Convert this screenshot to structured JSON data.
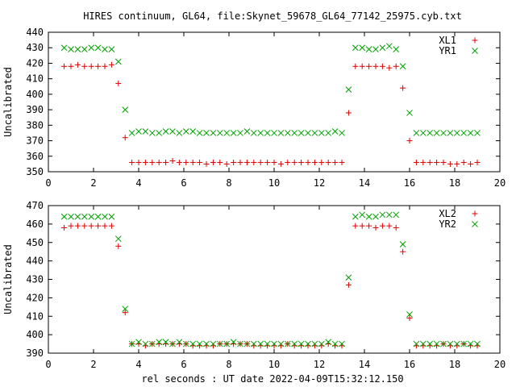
{
  "title": "HIRES continuum, GL64, file:Skynet_59678_GL64_77142_25975.cyb.txt",
  "xlabel": "rel seconds : UT date 2022-04-09T15:32:12.150",
  "colors": {
    "series1": "#e00000",
    "series2": "#00a000"
  },
  "chart_data": [
    {
      "type": "scatter",
      "ylabel": "Uncalibrated",
      "xlim": [
        0,
        20
      ],
      "ylim": [
        350,
        440
      ],
      "xticks": [
        0,
        2,
        4,
        6,
        8,
        10,
        12,
        14,
        16,
        18,
        20
      ],
      "yticks": [
        350,
        360,
        370,
        380,
        390,
        400,
        410,
        420,
        430,
        440
      ],
      "legend": "top-right",
      "series": [
        {
          "name": "XL1",
          "marker": "plus",
          "x": [
            0.7,
            1.0,
            1.3,
            1.6,
            1.9,
            2.2,
            2.5,
            2.8,
            3.1,
            3.4,
            3.7,
            4.0,
            4.3,
            4.6,
            4.9,
            5.2,
            5.5,
            5.8,
            6.1,
            6.4,
            6.7,
            7.0,
            7.3,
            7.6,
            7.9,
            8.2,
            8.5,
            8.8,
            9.1,
            9.4,
            9.7,
            10.0,
            10.3,
            10.6,
            10.9,
            11.2,
            11.5,
            11.8,
            12.1,
            12.4,
            12.7,
            13.0,
            13.3,
            13.6,
            13.9,
            14.2,
            14.5,
            14.8,
            15.1,
            15.4,
            15.7,
            16.0,
            16.3,
            16.6,
            16.9,
            17.2,
            17.5,
            17.8,
            18.1,
            18.4,
            18.7,
            19.0
          ],
          "y": [
            418,
            418,
            419,
            418,
            418,
            418,
            418,
            419,
            407,
            372,
            356,
            356,
            356,
            356,
            356,
            356,
            357,
            356,
            356,
            356,
            356,
            355,
            356,
            356,
            355,
            356,
            356,
            356,
            356,
            356,
            356,
            356,
            355,
            356,
            356,
            356,
            356,
            356,
            356,
            356,
            356,
            356,
            388,
            418,
            418,
            418,
            418,
            418,
            417,
            418,
            404,
            370,
            356,
            356,
            356,
            356,
            356,
            355,
            355,
            356,
            355,
            356
          ]
        },
        {
          "name": "YR1",
          "marker": "cross",
          "x": [
            0.7,
            1.0,
            1.3,
            1.6,
            1.9,
            2.2,
            2.5,
            2.8,
            3.1,
            3.4,
            3.7,
            4.0,
            4.3,
            4.6,
            4.9,
            5.2,
            5.5,
            5.8,
            6.1,
            6.4,
            6.7,
            7.0,
            7.3,
            7.6,
            7.9,
            8.2,
            8.5,
            8.8,
            9.1,
            9.4,
            9.7,
            10.0,
            10.3,
            10.6,
            10.9,
            11.2,
            11.5,
            11.8,
            12.1,
            12.4,
            12.7,
            13.0,
            13.3,
            13.6,
            13.9,
            14.2,
            14.5,
            14.8,
            15.1,
            15.4,
            15.7,
            16.0,
            16.3,
            16.6,
            16.9,
            17.2,
            17.5,
            17.8,
            18.1,
            18.4,
            18.7,
            19.0
          ],
          "y": [
            430,
            429,
            429,
            429,
            430,
            430,
            429,
            429,
            421,
            390,
            375,
            376,
            376,
            375,
            375,
            376,
            376,
            375,
            376,
            376,
            375,
            375,
            375,
            375,
            375,
            375,
            375,
            376,
            375,
            375,
            375,
            375,
            375,
            375,
            375,
            375,
            375,
            375,
            375,
            375,
            376,
            375,
            403,
            430,
            430,
            429,
            429,
            430,
            431,
            429,
            418,
            388,
            375,
            375,
            375,
            375,
            375,
            375,
            375,
            375,
            375,
            375
          ]
        }
      ]
    },
    {
      "type": "scatter",
      "ylabel": "Uncalibrated",
      "xlim": [
        0,
        20
      ],
      "ylim": [
        390,
        470
      ],
      "xticks": [
        0,
        2,
        4,
        6,
        8,
        10,
        12,
        14,
        16,
        18,
        20
      ],
      "yticks": [
        390,
        400,
        410,
        420,
        430,
        440,
        450,
        460,
        470
      ],
      "legend": "top-right",
      "series": [
        {
          "name": "XL2",
          "marker": "plus",
          "x": [
            0.7,
            1.0,
            1.3,
            1.6,
            1.9,
            2.2,
            2.5,
            2.8,
            3.1,
            3.4,
            3.7,
            4.0,
            4.3,
            4.6,
            4.9,
            5.2,
            5.5,
            5.8,
            6.1,
            6.4,
            6.7,
            7.0,
            7.3,
            7.6,
            7.9,
            8.2,
            8.5,
            8.8,
            9.1,
            9.4,
            9.7,
            10.0,
            10.3,
            10.6,
            10.9,
            11.2,
            11.5,
            11.8,
            12.1,
            12.4,
            12.7,
            13.0,
            13.3,
            13.6,
            13.9,
            14.2,
            14.5,
            14.8,
            15.1,
            15.4,
            15.7,
            16.0,
            16.3,
            16.6,
            16.9,
            17.2,
            17.5,
            17.8,
            18.1,
            18.4,
            18.7,
            19.0
          ],
          "y": [
            458,
            459,
            459,
            459,
            459,
            459,
            459,
            459,
            448,
            412,
            395,
            395,
            394,
            395,
            395,
            395,
            395,
            395,
            395,
            394,
            394,
            394,
            394,
            395,
            395,
            395,
            395,
            395,
            394,
            394,
            394,
            394,
            394,
            395,
            394,
            394,
            394,
            394,
            394,
            395,
            394,
            394,
            427,
            459,
            459,
            459,
            458,
            459,
            459,
            458,
            445,
            409,
            394,
            394,
            394,
            394,
            395,
            394,
            394,
            395,
            394,
            394
          ]
        },
        {
          "name": "YR2",
          "marker": "cross",
          "x": [
            0.7,
            1.0,
            1.3,
            1.6,
            1.9,
            2.2,
            2.5,
            2.8,
            3.1,
            3.4,
            3.7,
            4.0,
            4.3,
            4.6,
            4.9,
            5.2,
            5.5,
            5.8,
            6.1,
            6.4,
            6.7,
            7.0,
            7.3,
            7.6,
            7.9,
            8.2,
            8.5,
            8.8,
            9.1,
            9.4,
            9.7,
            10.0,
            10.3,
            10.6,
            10.9,
            11.2,
            11.5,
            11.8,
            12.1,
            12.4,
            12.7,
            13.0,
            13.3,
            13.6,
            13.9,
            14.2,
            14.5,
            14.8,
            15.1,
            15.4,
            15.7,
            16.0,
            16.3,
            16.6,
            16.9,
            17.2,
            17.5,
            17.8,
            18.1,
            18.4,
            18.7,
            19.0
          ],
          "y": [
            464,
            464,
            464,
            464,
            464,
            464,
            464,
            464,
            452,
            414,
            395,
            396,
            395,
            395,
            396,
            396,
            395,
            396,
            395,
            395,
            395,
            395,
            395,
            395,
            395,
            396,
            395,
            395,
            395,
            395,
            395,
            395,
            395,
            395,
            395,
            395,
            395,
            395,
            395,
            396,
            395,
            395,
            431,
            464,
            465,
            464,
            464,
            465,
            465,
            465,
            449,
            411,
            395,
            395,
            395,
            395,
            395,
            395,
            395,
            395,
            395,
            395
          ]
        }
      ]
    }
  ]
}
